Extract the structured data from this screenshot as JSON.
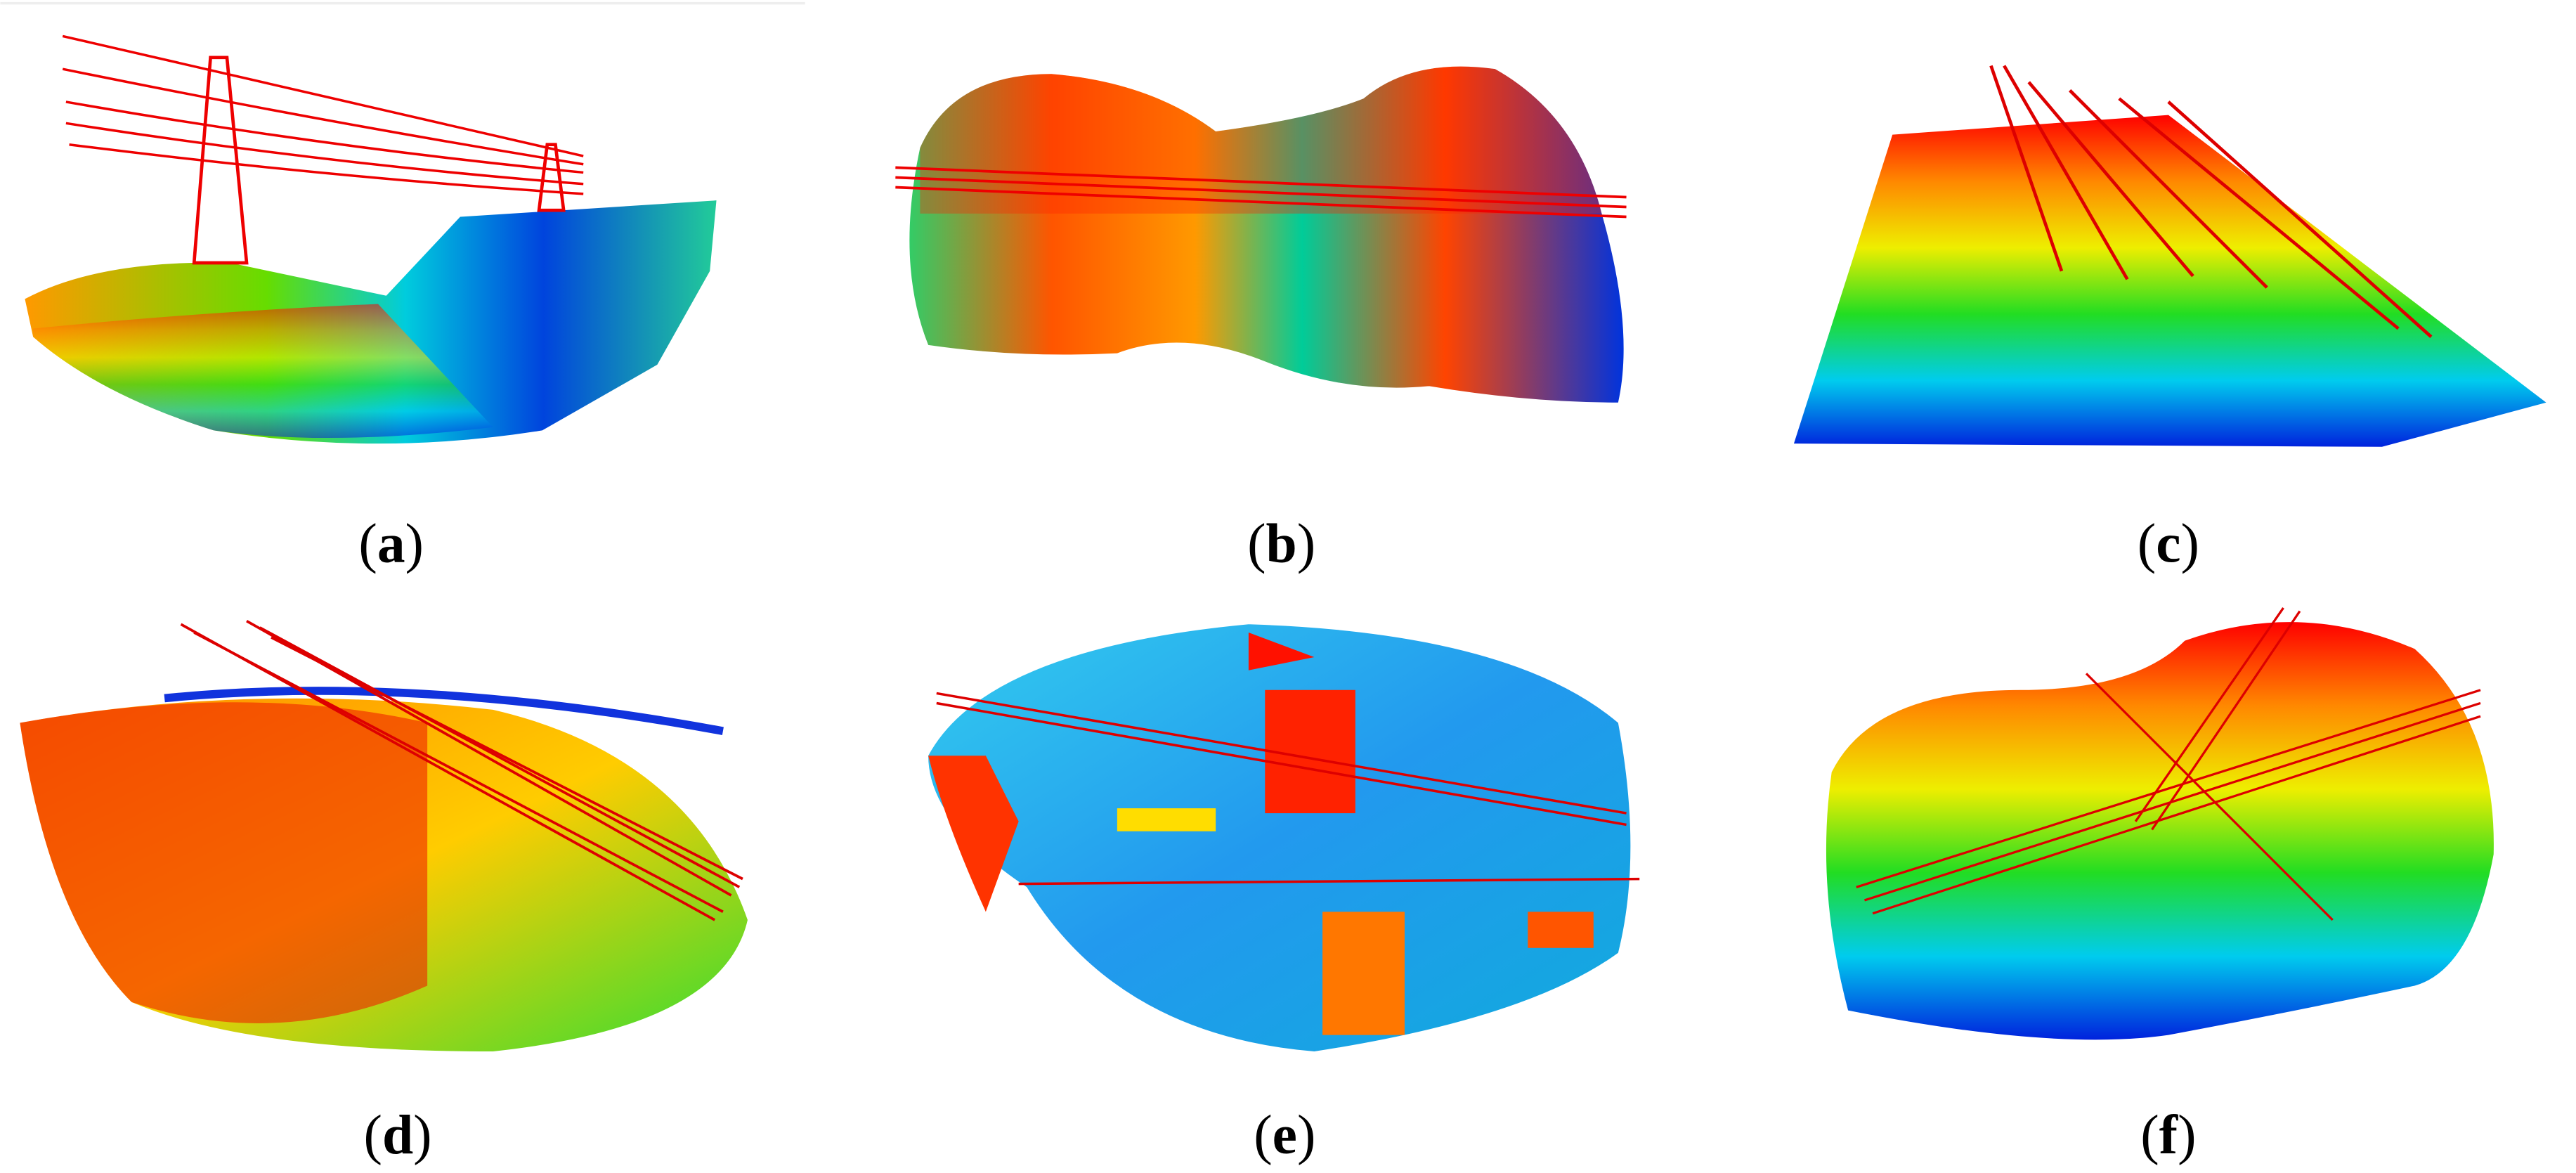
{
  "panels": [
    {
      "label": [
        "(",
        "a",
        ")"
      ]
    },
    {
      "label": [
        "(",
        "b",
        ")"
      ]
    },
    {
      "label": [
        "(",
        "c",
        ")"
      ]
    },
    {
      "label": [
        "(",
        "d",
        ")"
      ]
    },
    {
      "label": [
        "(",
        "e",
        ")"
      ]
    },
    {
      "label": [
        "(",
        "f",
        ")"
      ]
    }
  ]
}
